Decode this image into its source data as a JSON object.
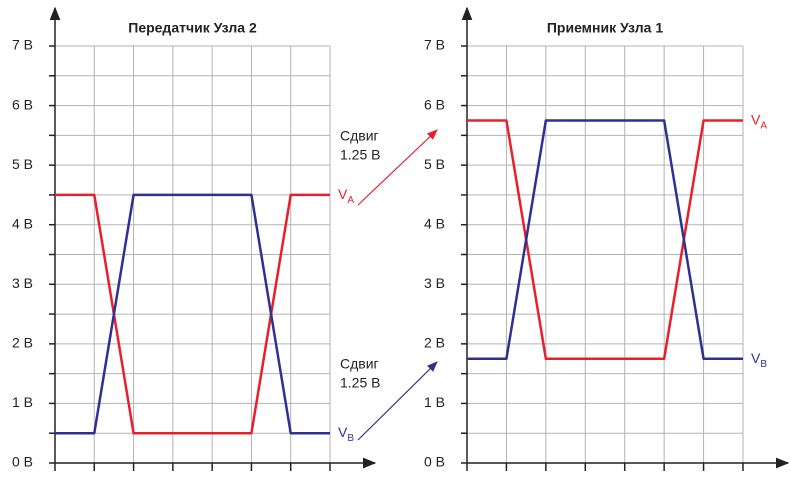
{
  "chart_data": [
    {
      "type": "line",
      "title": "Передатчик Узла 2",
      "x": [
        0,
        1,
        2,
        5,
        6,
        7
      ],
      "xlim": [
        0,
        7
      ],
      "xticks": [
        0,
        1,
        2,
        3,
        4,
        5,
        6,
        7
      ],
      "ylim": [
        0,
        7
      ],
      "yticks": [
        {
          "value": 0,
          "label": "0 В"
        },
        {
          "value": 1,
          "label": "1 В"
        },
        {
          "value": 2,
          "label": "2 В"
        },
        {
          "value": 3,
          "label": "3 В"
        },
        {
          "value": 4,
          "label": "4 В"
        },
        {
          "value": 5,
          "label": "5 В"
        },
        {
          "value": 6,
          "label": "6 В"
        },
        {
          "value": 7,
          "label": "7 В"
        }
      ],
      "minor_yticks": [
        0.5,
        1.5,
        2.5,
        3.5,
        4.5,
        5.5,
        6.5
      ],
      "grid": true,
      "series": [
        {
          "name": "VA",
          "color": "#e8202a",
          "values": [
            4.5,
            4.5,
            0.5,
            0.5,
            4.5,
            4.5
          ]
        },
        {
          "name": "VB",
          "color": "#2e3192",
          "values": [
            0.5,
            0.5,
            4.5,
            4.5,
            0.5,
            0.5
          ]
        }
      ],
      "annotations": [
        {
          "lines": [
            "Сдвиг",
            "1.25 В"
          ],
          "color": "#e8202a"
        },
        {
          "lines": [
            "Сдвиг",
            "1.25 В"
          ],
          "color": "#2e3192"
        }
      ]
    },
    {
      "type": "line",
      "title": "Приемник Узла 1",
      "x": [
        0,
        1,
        2,
        5,
        6,
        7
      ],
      "xlim": [
        0,
        7
      ],
      "xticks": [
        0,
        1,
        2,
        3,
        4,
        5,
        6,
        7
      ],
      "ylim": [
        0,
        7
      ],
      "yticks": [
        {
          "value": 0,
          "label": "0 В"
        },
        {
          "value": 1,
          "label": "1 В"
        },
        {
          "value": 2,
          "label": "2 В"
        },
        {
          "value": 3,
          "label": "3 В"
        },
        {
          "value": 4,
          "label": "4 В"
        },
        {
          "value": 5,
          "label": "5 В"
        },
        {
          "value": 6,
          "label": "6 В"
        },
        {
          "value": 7,
          "label": "7 В"
        }
      ],
      "minor_yticks": [
        0.5,
        1.5,
        2.5,
        3.5,
        4.5,
        5.5,
        6.5
      ],
      "grid": true,
      "series": [
        {
          "name": "VA",
          "color": "#e8202a",
          "values": [
            5.75,
            5.75,
            1.75,
            1.75,
            5.75,
            5.75
          ]
        },
        {
          "name": "VB",
          "color": "#2e3192",
          "values": [
            1.75,
            1.75,
            5.75,
            5.75,
            1.75,
            1.75
          ]
        }
      ]
    }
  ]
}
